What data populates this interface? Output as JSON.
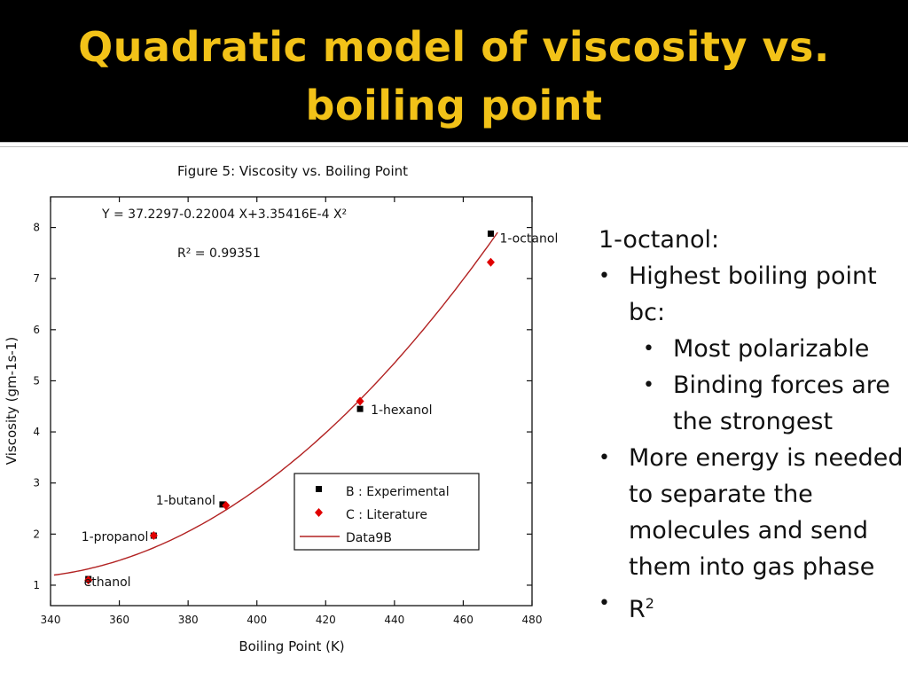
{
  "slide": {
    "title_line1": "Quadratic model of viscosity vs.",
    "title_line2": "boiling point",
    "colors": {
      "title_bg": "#000000",
      "title_text": "#f2c218",
      "fit_line": "#b22222",
      "literature": "#e00000",
      "experimental": "#000000"
    }
  },
  "notes": {
    "heading": "1-octanol:",
    "items": [
      {
        "level": 1,
        "text": "Highest boiling point bc:"
      },
      {
        "level": 2,
        "text": "Most polarizable"
      },
      {
        "level": 2,
        "text": "Binding forces are the strongest"
      },
      {
        "level": 1,
        "text": "More energy is needed to separate the molecules and send them into gas phase"
      },
      {
        "level": 1,
        "text": "R",
        "sup": "2"
      }
    ]
  },
  "chart_data": {
    "type": "scatter",
    "title": "Figure 5: Viscosity vs. Boiling Point",
    "xlabel": "Boiling Point (K)",
    "ylabel": "Viscosity (gm-1s-1)",
    "xlim": [
      340,
      480
    ],
    "ylim": [
      0.6,
      8.6
    ],
    "x_ticks": [
      340,
      360,
      380,
      400,
      420,
      440,
      460,
      480
    ],
    "y_ticks": [
      1,
      2,
      3,
      4,
      5,
      6,
      7,
      8
    ],
    "equation": "Y = 37.2297-0.22004 X+3.35416E-4 X²",
    "r_squared": "R² = 0.99351",
    "fit": {
      "a": 37.2297,
      "b": -0.22004,
      "c": 0.000335416,
      "x_range": [
        341,
        470
      ]
    },
    "series": [
      {
        "name": "B : Experimental",
        "marker": "square",
        "color": "#000000",
        "points": [
          {
            "x": 351,
            "y": 1.12
          },
          {
            "x": 370,
            "y": 1.97
          },
          {
            "x": 390,
            "y": 2.58
          },
          {
            "x": 430,
            "y": 4.45
          },
          {
            "x": 468,
            "y": 7.88
          }
        ]
      },
      {
        "name": "C : Literature",
        "marker": "diamond",
        "color": "#e00000",
        "points": [
          {
            "x": 351,
            "y": 1.1
          },
          {
            "x": 370,
            "y": 1.97
          },
          {
            "x": 391,
            "y": 2.56
          },
          {
            "x": 430,
            "y": 4.6
          },
          {
            "x": 468,
            "y": 7.32
          }
        ]
      },
      {
        "name": "Data9B",
        "marker": "line",
        "color": "#b22222"
      }
    ],
    "point_labels": [
      {
        "text": "ethanol",
        "x": 351,
        "y": 1.1
      },
      {
        "text": "1-propanol",
        "x": 370,
        "y": 1.97
      },
      {
        "text": "1-butanol",
        "x": 390,
        "y": 2.58
      },
      {
        "text": "1-hexanol",
        "x": 430,
        "y": 4.45
      },
      {
        "text": "1-octanol",
        "x": 468,
        "y": 7.6
      }
    ],
    "legend_position": "bottom-right",
    "grid": false
  }
}
